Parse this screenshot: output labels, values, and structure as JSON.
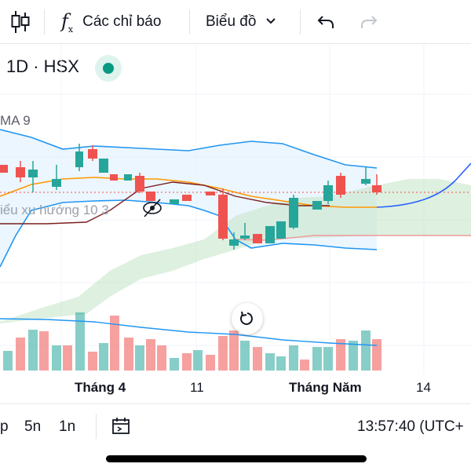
{
  "toolbar": {
    "indicators_label": "Các chỉ báo",
    "chart_type_label": "Biểu đồ"
  },
  "symbol": {
    "text": "1D · HSX",
    "status_color": "#089981"
  },
  "indicators": {
    "ma_label": "MA 9",
    "trend_label": "iểu xu hướng 10 3"
  },
  "chart_data": {
    "type": "candlestick",
    "x_tick_labels": [
      {
        "text": "Tháng 4",
        "bold": true
      },
      {
        "text": "11",
        "bold": false
      },
      {
        "text": "Tháng Năm",
        "bold": true
      },
      {
        "text": "14",
        "bold": false
      }
    ],
    "series_colors": {
      "up": "#26a69a",
      "down": "#ef5350",
      "bollinger": "#2196f3",
      "ma": "#ff9800",
      "cloud": "#a5d6a7"
    }
  },
  "bottom": {
    "tf_partial": "p",
    "tf_5n": "5n",
    "tf_1n": "1n",
    "time": "13:57:40 (UTC+"
  },
  "icons": [
    "candles-icon",
    "fx-icon",
    "chevron-down-icon",
    "undo-icon",
    "redo-icon",
    "hide-icon",
    "reset-icon",
    "date-range-icon"
  ]
}
